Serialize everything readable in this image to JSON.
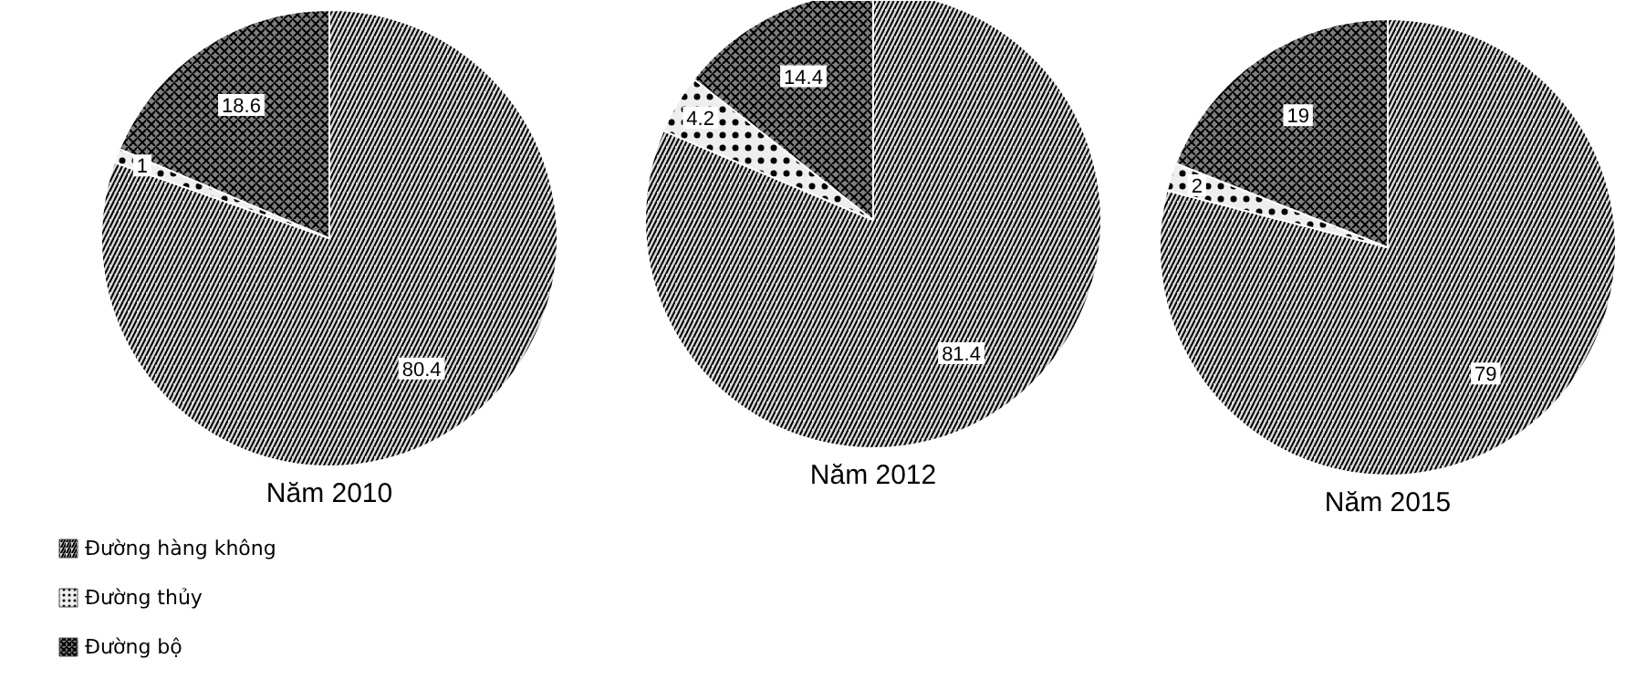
{
  "chart_data": [
    {
      "type": "pie",
      "title": "Năm 2010",
      "categories": [
        "Đường hàng không",
        "Đường thủy",
        "Đường bộ"
      ],
      "values": [
        80.4,
        1,
        18.6
      ],
      "colors": [
        "#d9d9d9",
        "#eeeeee",
        "#7f7f7f"
      ],
      "data_labels": true,
      "legend": "bottom left"
    },
    {
      "type": "pie",
      "title": "Năm 2012",
      "categories": [
        null,
        null,
        null
      ],
      "values": [
        81.4,
        4.2,
        14.4
      ],
      "colors": [
        "#d9d9d9",
        "#eeeeee",
        "#7f7f7f"
      ],
      "data_labels": true
    },
    {
      "type": "pie",
      "title": "Năm 2015",
      "categories": [
        null,
        null,
        null
      ],
      "values": [
        79,
        2,
        19
      ],
      "colors": [
        "#d9d9d9",
        "#eeeeee",
        "#7f7f7f"
      ],
      "data_labels": true
    }
  ]
}
